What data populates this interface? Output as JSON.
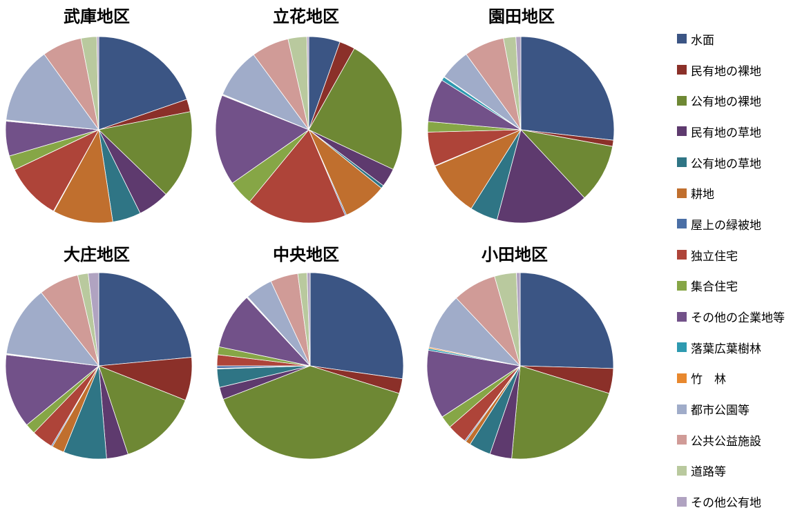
{
  "chart_data": {
    "type": "pie",
    "categories": [
      "水面",
      "民有地の裸地",
      "公有地の裸地",
      "民有地の草地",
      "公有地の草地",
      "耕地",
      "屋上の緑被地",
      "独立住宅",
      "集合住宅",
      "その他の企業地等",
      "落葉広葉樹林",
      "竹　林",
      "都市公園等",
      "公共公益施設",
      "道路等",
      "その他公有地"
    ],
    "colors": [
      "#3B5584",
      "#8B3029",
      "#6E8834",
      "#5E3A6E",
      "#2F7585",
      "#C06F2E",
      "#4A6FA6",
      "#AE4439",
      "#86A646",
      "#725189",
      "#2E9AB0",
      "#E8882E",
      "#A0ACC9",
      "#D09B97",
      "#B9C99E",
      "#B0A3C1"
    ],
    "charts": [
      {
        "title": "武庫地区",
        "values": [
          18.0,
          2.0,
          14.0,
          5.0,
          4.5,
          9.5,
          0.1,
          9.0,
          2.3,
          5.5,
          0.1,
          0.1,
          12.2,
          6.3,
          2.5,
          0.3
        ]
      },
      {
        "title": "立花地区",
        "values": [
          5.0,
          2.5,
          22.0,
          3.0,
          0.5,
          7.0,
          0.2,
          16.0,
          4.0,
          14.5,
          0.1,
          0.1,
          8.0,
          6.0,
          3.0,
          0.3
        ]
      },
      {
        "title": "園田地区",
        "values": [
          25.0,
          1.0,
          9.5,
          15.0,
          4.5,
          9.0,
          0.1,
          5.5,
          1.7,
          7.0,
          0.6,
          0.1,
          5.0,
          6.5,
          2.0,
          0.8
        ]
      },
      {
        "title": "大庄地区",
        "values": [
          22.0,
          7.0,
          13.0,
          3.5,
          7.0,
          2.0,
          0.2,
          3.5,
          1.7,
          12.0,
          0.1,
          0.1,
          11.5,
          6.5,
          1.7,
          1.7
        ]
      },
      {
        "title": "中央地区",
        "values": [
          25.6,
          2.4,
          37.0,
          2.0,
          3.0,
          0.1,
          0.4,
          1.8,
          1.3,
          9.2,
          0.1,
          0.1,
          4.5,
          4.5,
          1.5,
          0.5
        ]
      },
      {
        "title": "小田地区",
        "values": [
          23.5,
          4.0,
          20.0,
          3.5,
          3.5,
          0.8,
          0.2,
          3.2,
          2.0,
          11.0,
          0.3,
          0.2,
          9.0,
          7.0,
          3.5,
          0.6
        ]
      }
    ]
  }
}
